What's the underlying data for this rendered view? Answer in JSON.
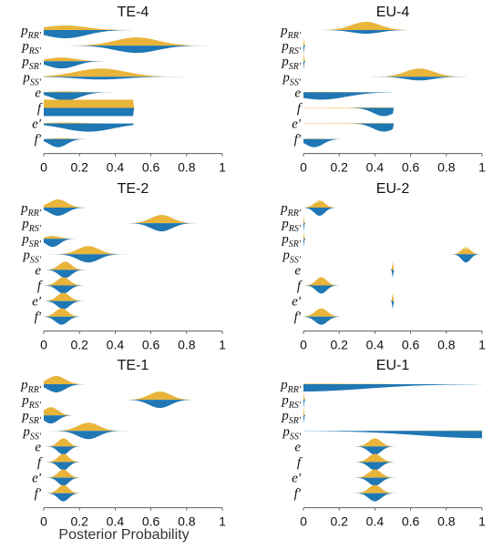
{
  "figure": {
    "xlabel": "Posterior Probability"
  },
  "colors": {
    "top": "#E8B43A",
    "bottom": "#1F77B4",
    "axis": "#444444"
  },
  "chart_data": [
    {
      "type": "area",
      "title": "TE-4",
      "xlim": [
        0,
        1
      ],
      "xticks": [
        "0",
        "0.2",
        "0.4",
        "0.6",
        "0.8",
        "1"
      ],
      "params": [
        {
          "base": "p",
          "sub": "RR'",
          "top": {
            "mean": 0.12,
            "sd": 0.12,
            "amp": 0.5,
            "max": 0.5
          },
          "bottom": {
            "mean": 0.12,
            "sd": 0.12,
            "amp": 0.9,
            "max": 0.5
          }
        },
        {
          "base": "p",
          "sub": "RS'",
          "top": {
            "mean": 0.52,
            "sd": 0.12,
            "amp": 0.9
          },
          "bottom": {
            "mean": 0.52,
            "sd": 0.12,
            "amp": 0.8
          }
        },
        {
          "base": "p",
          "sub": "SR'",
          "top": {
            "mean": 0.1,
            "sd": 0.08,
            "amp": 0.4
          },
          "bottom": {
            "mean": 0.1,
            "sd": 0.08,
            "amp": 0.8
          }
        },
        {
          "base": "p",
          "sub": "SS'",
          "top": {
            "mean": 0.32,
            "sd": 0.14,
            "amp": 0.9
          },
          "bottom": {
            "mean": 0.32,
            "sd": 0.14,
            "amp": 0.3
          }
        },
        {
          "base": "e",
          "sub": "",
          "top": {
            "mean": 0.12,
            "sd": 0.08,
            "amp": 0.1
          },
          "bottom": {
            "mean": 0.12,
            "sd": 0.08,
            "amp": 0.9,
            "max": 0.5
          }
        },
        {
          "base": "f",
          "sub": "",
          "top": {
            "mean": 0.25,
            "sd": 0.3,
            "amp": 0.9,
            "flat": true,
            "max": 0.5
          },
          "bottom": {
            "mean": 0.25,
            "sd": 0.3,
            "amp": 0.9,
            "flat": true,
            "max": 0.5
          }
        },
        {
          "base": "e",
          "sub": "'",
          "top": {
            "mean": 0.12,
            "sd": 0.1,
            "amp": 0.1
          },
          "bottom": {
            "mean": 0.25,
            "sd": 0.14,
            "amp": 0.9,
            "max": 0.5
          }
        },
        {
          "base": "f",
          "sub": "'",
          "top": {
            "mean": 0.1,
            "sd": 0.05,
            "amp": 0.1
          },
          "bottom": {
            "mean": 0.08,
            "sd": 0.05,
            "amp": 0.9
          }
        }
      ]
    },
    {
      "type": "area",
      "title": "EU-4",
      "xlim": [
        0,
        1
      ],
      "xticks": [
        "0",
        "0.2",
        "0.4",
        "0.6",
        "0.8",
        "1"
      ],
      "params": [
        {
          "base": "p",
          "sub": "RR'",
          "top": {
            "mean": 0.35,
            "sd": 0.08,
            "amp": 0.9
          },
          "bottom": {
            "mean": 0.35,
            "sd": 0.08,
            "amp": 0.4
          }
        },
        {
          "base": "p",
          "sub": "RS'",
          "top": {
            "mean": 0.0,
            "sd": 0.003,
            "amp": 0.9,
            "max": 0.01
          },
          "bottom": {
            "mean": 0.0,
            "sd": 0.003,
            "amp": 0.9,
            "max": 0.01
          }
        },
        {
          "base": "p",
          "sub": "SR'",
          "top": {
            "mean": 0.0,
            "sd": 0.003,
            "amp": 0.9,
            "max": 0.01
          },
          "bottom": {
            "mean": 0.0,
            "sd": 0.003,
            "amp": 0.9,
            "max": 0.01
          }
        },
        {
          "base": "p",
          "sub": "SS'",
          "top": {
            "mean": 0.65,
            "sd": 0.08,
            "amp": 0.9
          },
          "bottom": {
            "mean": 0.65,
            "sd": 0.08,
            "amp": 0.4
          }
        },
        {
          "base": "e",
          "sub": "",
          "top": {
            "mean": 0.1,
            "sd": 0.15,
            "amp": 0.05
          },
          "bottom": {
            "mean": 0.1,
            "sd": 0.14,
            "amp": 0.8,
            "max": 0.5
          }
        },
        {
          "base": "f",
          "sub": "",
          "top": {
            "mean": 0.3,
            "sd": 0.3,
            "amp": 0.05,
            "max": 0.5
          },
          "bottom": {
            "mean": 0.45,
            "sd": 0.06,
            "amp": 0.9,
            "max": 0.5
          }
        },
        {
          "base": "e",
          "sub": "'",
          "top": {
            "mean": 0.3,
            "sd": 0.3,
            "amp": 0.05,
            "max": 0.5
          },
          "bottom": {
            "mean": 0.45,
            "sd": 0.06,
            "amp": 0.9,
            "max": 0.5
          }
        },
        {
          "base": "f",
          "sub": "'",
          "top": {
            "mean": 0.05,
            "sd": 0.05,
            "amp": 0.05
          },
          "bottom": {
            "mean": 0.06,
            "sd": 0.05,
            "amp": 0.9
          }
        }
      ]
    },
    {
      "type": "area",
      "title": "TE-2",
      "xlim": [
        0,
        1
      ],
      "xticks": [
        "0",
        "0.2",
        "0.4",
        "0.6",
        "0.8",
        "1"
      ],
      "params": [
        {
          "base": "p",
          "sub": "RR'",
          "top": {
            "mean": 0.08,
            "sd": 0.05,
            "amp": 0.9
          },
          "bottom": {
            "mean": 0.08,
            "sd": 0.05,
            "amp": 0.9
          }
        },
        {
          "base": "p",
          "sub": "RS'",
          "top": {
            "mean": 0.66,
            "sd": 0.06,
            "amp": 0.9
          },
          "bottom": {
            "mean": 0.66,
            "sd": 0.06,
            "amp": 0.9
          }
        },
        {
          "base": "p",
          "sub": "SR'",
          "top": {
            "mean": 0.05,
            "sd": 0.04,
            "amp": 0.3
          },
          "bottom": {
            "mean": 0.05,
            "sd": 0.04,
            "amp": 0.9
          }
        },
        {
          "base": "p",
          "sub": "SS'",
          "top": {
            "mean": 0.25,
            "sd": 0.06,
            "amp": 0.9
          },
          "bottom": {
            "mean": 0.25,
            "sd": 0.06,
            "amp": 0.9
          }
        },
        {
          "base": "e",
          "sub": "",
          "top": {
            "mean": 0.12,
            "sd": 0.035,
            "amp": 0.9
          },
          "bottom": {
            "mean": 0.12,
            "sd": 0.035,
            "amp": 0.9
          }
        },
        {
          "base": "f",
          "sub": "",
          "top": {
            "mean": 0.11,
            "sd": 0.035,
            "amp": 0.9
          },
          "bottom": {
            "mean": 0.11,
            "sd": 0.035,
            "amp": 0.9
          }
        },
        {
          "base": "e",
          "sub": "'",
          "top": {
            "mean": 0.11,
            "sd": 0.035,
            "amp": 0.9
          },
          "bottom": {
            "mean": 0.11,
            "sd": 0.035,
            "amp": 0.9
          }
        },
        {
          "base": "f",
          "sub": "'",
          "top": {
            "mean": 0.1,
            "sd": 0.035,
            "amp": 0.9
          },
          "bottom": {
            "mean": 0.1,
            "sd": 0.035,
            "amp": 0.9
          }
        }
      ]
    },
    {
      "type": "area",
      "title": "EU-2",
      "xlim": [
        0,
        1
      ],
      "xticks": [
        "0",
        "0.2",
        "0.4",
        "0.6",
        "0.8",
        "1"
      ],
      "params": [
        {
          "base": "p",
          "sub": "RR'",
          "top": {
            "mean": 0.09,
            "sd": 0.03,
            "amp": 0.9,
            "spiky": true
          },
          "bottom": {
            "mean": 0.09,
            "sd": 0.03,
            "amp": 0.9
          }
        },
        {
          "base": "p",
          "sub": "RS'",
          "top": {
            "mean": 0.0,
            "sd": 0.003,
            "amp": 0.9,
            "max": 0.01
          },
          "bottom": {
            "mean": 0.0,
            "sd": 0.003,
            "amp": 0.9,
            "max": 0.01
          }
        },
        {
          "base": "p",
          "sub": "SR'",
          "top": {
            "mean": 0.0,
            "sd": 0.003,
            "amp": 0.9,
            "max": 0.01
          },
          "bottom": {
            "mean": 0.0,
            "sd": 0.003,
            "amp": 0.9,
            "max": 0.01
          }
        },
        {
          "base": "p",
          "sub": "SS'",
          "top": {
            "mean": 0.91,
            "sd": 0.025,
            "amp": 0.9,
            "spiky": true
          },
          "bottom": {
            "mean": 0.91,
            "sd": 0.025,
            "amp": 0.9
          }
        },
        {
          "base": "e",
          "sub": "",
          "top": {
            "mean": 0.5,
            "sd": 0.003,
            "amp": 0.9,
            "max": 0.5
          },
          "bottom": {
            "mean": 0.5,
            "sd": 0.003,
            "amp": 0.9,
            "max": 0.5
          }
        },
        {
          "base": "f",
          "sub": "",
          "top": {
            "mean": 0.1,
            "sd": 0.03,
            "amp": 0.9
          },
          "bottom": {
            "mean": 0.1,
            "sd": 0.03,
            "amp": 0.9
          }
        },
        {
          "base": "e",
          "sub": "'",
          "top": {
            "mean": 0.5,
            "sd": 0.003,
            "amp": 0.9,
            "max": 0.5
          },
          "bottom": {
            "mean": 0.5,
            "sd": 0.003,
            "amp": 0.9,
            "max": 0.5
          }
        },
        {
          "base": "f",
          "sub": "'",
          "top": {
            "mean": 0.1,
            "sd": 0.035,
            "amp": 0.9
          },
          "bottom": {
            "mean": 0.1,
            "sd": 0.035,
            "amp": 0.9
          }
        }
      ]
    },
    {
      "type": "area",
      "title": "TE-1",
      "xlim": [
        0,
        1
      ],
      "xticks": [
        "0",
        "0.2",
        "0.4",
        "0.6",
        "0.8",
        "1"
      ],
      "params": [
        {
          "base": "p",
          "sub": "RR'",
          "top": {
            "mean": 0.07,
            "sd": 0.05,
            "amp": 0.9
          },
          "bottom": {
            "mean": 0.07,
            "sd": 0.05,
            "amp": 0.9
          }
        },
        {
          "base": "p",
          "sub": "RS'",
          "top": {
            "mean": 0.65,
            "sd": 0.06,
            "amp": 0.9
          },
          "bottom": {
            "mean": 0.65,
            "sd": 0.06,
            "amp": 0.9
          }
        },
        {
          "base": "p",
          "sub": "SR'",
          "top": {
            "mean": 0.04,
            "sd": 0.04,
            "amp": 0.9
          },
          "bottom": {
            "mean": 0.04,
            "sd": 0.04,
            "amp": 0.9
          }
        },
        {
          "base": "p",
          "sub": "SS'",
          "top": {
            "mean": 0.25,
            "sd": 0.06,
            "amp": 0.9
          },
          "bottom": {
            "mean": 0.25,
            "sd": 0.06,
            "amp": 0.9
          }
        },
        {
          "base": "e",
          "sub": "",
          "top": {
            "mean": 0.11,
            "sd": 0.03,
            "amp": 0.9
          },
          "bottom": {
            "mean": 0.11,
            "sd": 0.03,
            "amp": 0.9
          }
        },
        {
          "base": "f",
          "sub": "",
          "top": {
            "mean": 0.11,
            "sd": 0.03,
            "amp": 0.9
          },
          "bottom": {
            "mean": 0.11,
            "sd": 0.03,
            "amp": 0.9
          }
        },
        {
          "base": "e",
          "sub": "'",
          "top": {
            "mean": 0.11,
            "sd": 0.03,
            "amp": 0.9
          },
          "bottom": {
            "mean": 0.11,
            "sd": 0.03,
            "amp": 0.9
          }
        },
        {
          "base": "f",
          "sub": "'",
          "top": {
            "mean": 0.11,
            "sd": 0.03,
            "amp": 0.9
          },
          "bottom": {
            "mean": 0.11,
            "sd": 0.03,
            "amp": 0.9
          }
        }
      ]
    },
    {
      "type": "area",
      "title": "EU-1",
      "xlim": [
        0,
        1
      ],
      "xticks": [
        "0",
        "0.2",
        "0.4",
        "0.6",
        "0.8",
        "1"
      ],
      "params": [
        {
          "base": "p",
          "sub": "RR'",
          "top": {
            "mean": 0.05,
            "sd": 0.3,
            "amp": 0.05
          },
          "bottom": {
            "mean": 0.0,
            "sd": 0.35,
            "amp": 0.8,
            "halfLeft": true
          }
        },
        {
          "base": "p",
          "sub": "RS'",
          "top": {
            "mean": 0.0,
            "sd": 0.003,
            "amp": 0.9,
            "max": 0.01
          },
          "bottom": {
            "mean": 0.0,
            "sd": 0.003,
            "amp": 0.9,
            "max": 0.01
          }
        },
        {
          "base": "p",
          "sub": "SR'",
          "top": {
            "mean": 0.0,
            "sd": 0.003,
            "amp": 0.9,
            "max": 0.01
          },
          "bottom": {
            "mean": 0.0,
            "sd": 0.003,
            "amp": 0.9,
            "max": 0.01
          }
        },
        {
          "base": "p",
          "sub": "SS'",
          "top": {
            "mean": 0.9,
            "sd": 0.3,
            "amp": 0.05
          },
          "bottom": {
            "mean": 1.0,
            "sd": 0.35,
            "amp": 0.8,
            "halfRight": true
          }
        },
        {
          "base": "e",
          "sub": "",
          "top": {
            "mean": 0.4,
            "sd": 0.035,
            "amp": 0.9
          },
          "bottom": {
            "mean": 0.4,
            "sd": 0.035,
            "amp": 0.9
          }
        },
        {
          "base": "f",
          "sub": "",
          "top": {
            "mean": 0.4,
            "sd": 0.035,
            "amp": 0.9
          },
          "bottom": {
            "mean": 0.4,
            "sd": 0.035,
            "amp": 0.9
          }
        },
        {
          "base": "e",
          "sub": "'",
          "top": {
            "mean": 0.4,
            "sd": 0.035,
            "amp": 0.9
          },
          "bottom": {
            "mean": 0.4,
            "sd": 0.035,
            "amp": 0.9
          }
        },
        {
          "base": "f",
          "sub": "'",
          "top": {
            "mean": 0.4,
            "sd": 0.035,
            "amp": 0.9
          },
          "bottom": {
            "mean": 0.4,
            "sd": 0.035,
            "amp": 0.9
          }
        }
      ]
    }
  ]
}
